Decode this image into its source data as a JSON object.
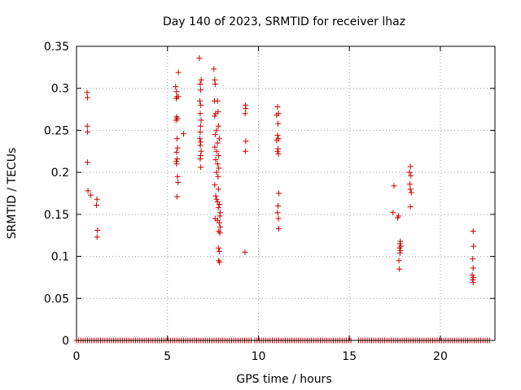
{
  "chart_data": {
    "type": "scatter",
    "title": "Day 140 of 2023, SRMTID for receiver lhaz",
    "xlabel": "GPS time / hours",
    "ylabel": "SRMTID / TECUs",
    "xlim": [
      0,
      23
    ],
    "ylim": [
      0,
      0.35
    ],
    "xticks": [
      0,
      5,
      10,
      15,
      20
    ],
    "yticks": [
      0,
      0.05,
      0.1,
      0.15,
      0.2,
      0.25,
      0.3,
      0.35
    ],
    "xtick_labels": [
      "0",
      "5",
      "10",
      "15",
      "20"
    ],
    "ytick_labels": [
      "0",
      "0.05",
      "0.1",
      "0.15",
      "0.2",
      "0.25",
      "0.3",
      "0.35"
    ],
    "grid": true,
    "marker": "plus",
    "color": "#cc0000",
    "zero_band": [
      [
        0,
        9.7
      ],
      [
        9.8,
        15.1
      ],
      [
        15.5,
        22.7
      ]
    ],
    "points": [
      [
        0.58,
        0.295
      ],
      [
        0.6,
        0.289
      ],
      [
        0.59,
        0.255
      ],
      [
        0.61,
        0.248
      ],
      [
        0.6,
        0.212
      ],
      [
        0.63,
        0.178
      ],
      [
        0.78,
        0.173
      ],
      [
        1.12,
        0.168
      ],
      [
        1.1,
        0.161
      ],
      [
        1.15,
        0.131
      ],
      [
        1.13,
        0.123
      ],
      [
        5.45,
        0.302
      ],
      [
        5.5,
        0.296
      ],
      [
        5.52,
        0.29
      ],
      [
        5.48,
        0.288
      ],
      [
        5.6,
        0.319
      ],
      [
        5.5,
        0.266
      ],
      [
        5.55,
        0.264
      ],
      [
        5.47,
        0.262
      ],
      [
        5.52,
        0.24
      ],
      [
        5.55,
        0.229
      ],
      [
        5.5,
        0.224
      ],
      [
        5.53,
        0.216
      ],
      [
        5.48,
        0.213
      ],
      [
        5.5,
        0.21
      ],
      [
        5.55,
        0.195
      ],
      [
        5.58,
        0.188
      ],
      [
        5.52,
        0.171
      ],
      [
        5.88,
        0.246
      ],
      [
        5.6,
        0.29
      ],
      [
        6.75,
        0.336
      ],
      [
        6.8,
        0.305
      ],
      [
        6.85,
        0.31
      ],
      [
        6.82,
        0.298
      ],
      [
        6.78,
        0.285
      ],
      [
        6.83,
        0.28
      ],
      [
        6.8,
        0.27
      ],
      [
        6.85,
        0.262
      ],
      [
        6.82,
        0.255
      ],
      [
        6.8,
        0.248
      ],
      [
        6.78,
        0.24
      ],
      [
        6.83,
        0.236
      ],
      [
        6.8,
        0.232
      ],
      [
        6.85,
        0.225
      ],
      [
        6.82,
        0.22
      ],
      [
        6.8,
        0.216
      ],
      [
        6.83,
        0.206
      ],
      [
        7.55,
        0.323
      ],
      [
        7.6,
        0.31
      ],
      [
        7.62,
        0.305
      ],
      [
        7.58,
        0.285
      ],
      [
        7.75,
        0.285
      ],
      [
        7.65,
        0.27
      ],
      [
        7.6,
        0.267
      ],
      [
        7.78,
        0.272
      ],
      [
        7.8,
        0.255
      ],
      [
        7.7,
        0.25
      ],
      [
        7.62,
        0.245
      ],
      [
        7.85,
        0.24
      ],
      [
        7.75,
        0.235
      ],
      [
        7.6,
        0.23
      ],
      [
        7.7,
        0.225
      ],
      [
        7.8,
        0.22
      ],
      [
        7.65,
        0.215
      ],
      [
        7.75,
        0.21
      ],
      [
        7.82,
        0.205
      ],
      [
        7.7,
        0.2
      ],
      [
        7.78,
        0.195
      ],
      [
        7.6,
        0.185
      ],
      [
        7.8,
        0.18
      ],
      [
        7.65,
        0.172
      ],
      [
        7.7,
        0.168
      ],
      [
        7.75,
        0.165
      ],
      [
        7.85,
        0.162
      ],
      [
        7.8,
        0.158
      ],
      [
        7.9,
        0.152
      ],
      [
        7.88,
        0.148
      ],
      [
        7.62,
        0.145
      ],
      [
        7.75,
        0.143
      ],
      [
        7.85,
        0.14
      ],
      [
        7.9,
        0.135
      ],
      [
        7.82,
        0.13
      ],
      [
        7.88,
        0.128
      ],
      [
        7.8,
        0.11
      ],
      [
        7.85,
        0.106
      ],
      [
        7.82,
        0.095
      ],
      [
        7.86,
        0.093
      ],
      [
        9.28,
        0.28
      ],
      [
        9.3,
        0.276
      ],
      [
        9.27,
        0.27
      ],
      [
        9.3,
        0.237
      ],
      [
        9.28,
        0.225
      ],
      [
        9.26,
        0.105
      ],
      [
        11.05,
        0.278
      ],
      [
        11.1,
        0.27
      ],
      [
        11.0,
        0.268
      ],
      [
        11.08,
        0.258
      ],
      [
        11.05,
        0.244
      ],
      [
        11.1,
        0.24
      ],
      [
        11.0,
        0.238
      ],
      [
        11.08,
        0.228
      ],
      [
        11.05,
        0.225
      ],
      [
        11.1,
        0.222
      ],
      [
        11.12,
        0.175
      ],
      [
        11.08,
        0.16
      ],
      [
        11.05,
        0.152
      ],
      [
        11.1,
        0.145
      ],
      [
        11.12,
        0.133
      ],
      [
        17.45,
        0.184
      ],
      [
        17.4,
        0.152
      ],
      [
        17.7,
        0.148
      ],
      [
        17.65,
        0.146
      ],
      [
        17.8,
        0.118
      ],
      [
        17.78,
        0.115
      ],
      [
        17.82,
        0.112
      ],
      [
        17.76,
        0.11
      ],
      [
        17.8,
        0.107
      ],
      [
        17.78,
        0.104
      ],
      [
        17.72,
        0.095
      ],
      [
        17.75,
        0.085
      ],
      [
        18.35,
        0.207
      ],
      [
        18.3,
        0.2
      ],
      [
        18.38,
        0.196
      ],
      [
        18.32,
        0.186
      ],
      [
        18.35,
        0.18
      ],
      [
        18.4,
        0.176
      ],
      [
        18.35,
        0.159
      ],
      [
        21.8,
        0.13
      ],
      [
        21.82,
        0.112
      ],
      [
        21.78,
        0.097
      ],
      [
        21.8,
        0.086
      ],
      [
        21.75,
        0.078
      ],
      [
        21.82,
        0.075
      ],
      [
        21.78,
        0.072
      ],
      [
        21.8,
        0.069
      ]
    ]
  }
}
